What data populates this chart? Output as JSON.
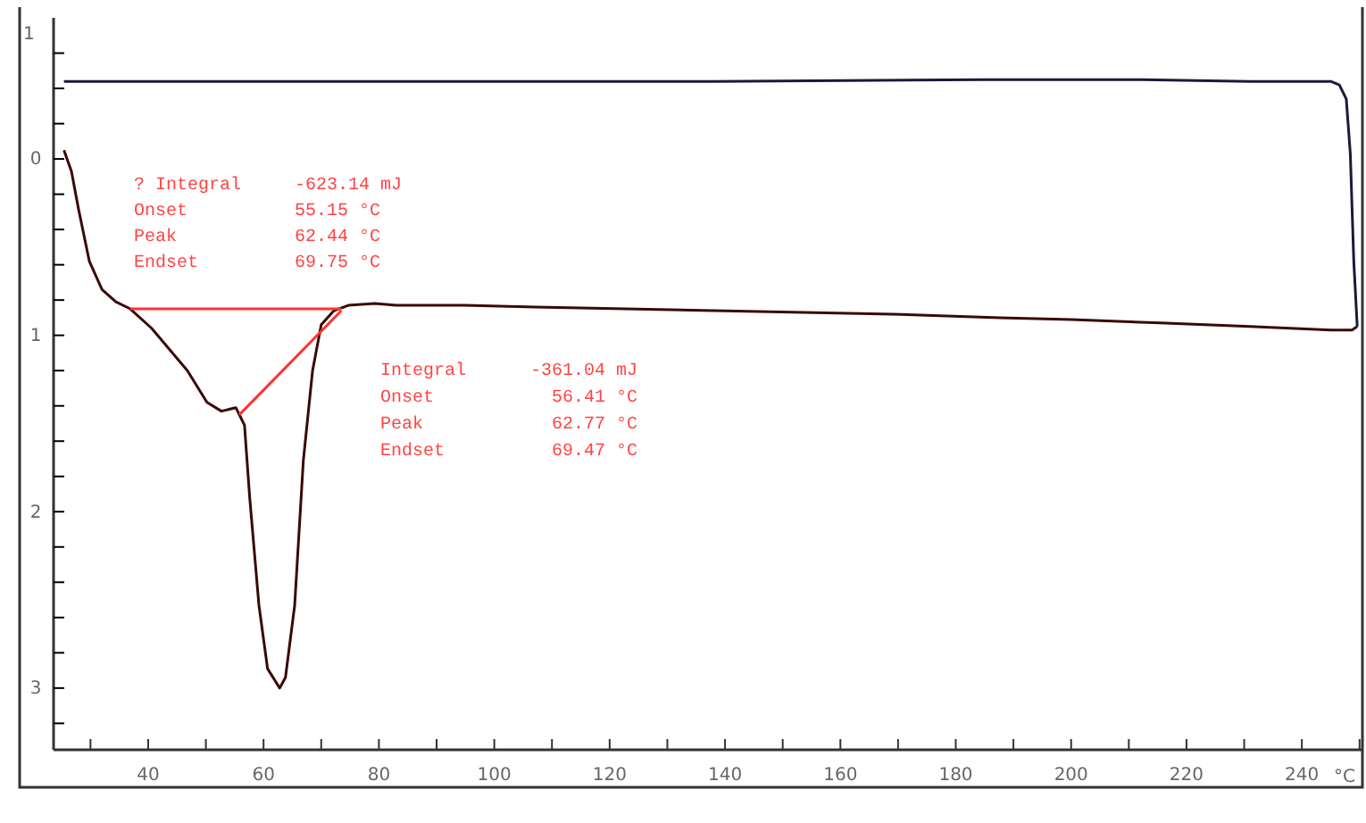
{
  "chart_data": {
    "type": "line",
    "xlabel": "°C",
    "xlim": [
      23.6,
      250.5
    ],
    "xticks": [
      {
        "value": 30,
        "label": null
      },
      40,
      {
        "value": 50,
        "label": null
      },
      60,
      {
        "value": 70,
        "label": null
      },
      80,
      {
        "value": 90,
        "label": null
      },
      100,
      {
        "value": 110,
        "label": null
      },
      120,
      {
        "value": 130,
        "label": null
      },
      140,
      {
        "value": 150,
        "label": null
      },
      160,
      {
        "value": 170,
        "label": null
      },
      180,
      {
        "value": 190,
        "label": null
      },
      200,
      {
        "value": 210,
        "label": null
      },
      220,
      {
        "value": 230,
        "label": null
      },
      240,
      {
        "value": 250,
        "label": null
      }
    ],
    "ylim": [
      -3.35,
      0.8
    ],
    "yticks": [
      {
        "value": 0.6,
        "label": null
      },
      {
        "value": 0.4,
        "label": null
      },
      {
        "value": 0.2,
        "label": null
      },
      0,
      {
        "value": -0.2,
        "label": null
      },
      {
        "value": -0.4,
        "label": null
      },
      {
        "value": -0.6,
        "label": null
      },
      {
        "value": -0.8,
        "label": null
      },
      {
        "value": -1,
        "label": "1"
      },
      {
        "value": -1.2,
        "label": null
      },
      {
        "value": -1.4,
        "label": null
      },
      {
        "value": -1.6,
        "label": null
      },
      {
        "value": -1.8,
        "label": null
      },
      {
        "value": -2,
        "label": "2"
      },
      {
        "value": -2.2,
        "label": null
      },
      {
        "value": -2.4,
        "label": null
      },
      {
        "value": -2.6,
        "label": null
      },
      {
        "value": -2.8,
        "label": null
      },
      {
        "value": -3,
        "label": "3"
      },
      {
        "value": -3.2,
        "label": null
      }
    ],
    "grid": false,
    "marker": "none",
    "line_style": "solid",
    "series": [
      {
        "color": "#3a0808",
        "x": [
          25.4,
          26.7,
          27.9,
          29.8,
          32.0,
          34.4,
          36.9,
          40.6,
          43.7,
          46.8,
          50.2,
          52.7,
          55.2,
          56.7,
          57.6,
          59.2,
          60.7,
          62.8,
          63.8,
          65.4,
          66.9,
          68.5,
          70.0,
          72.2,
          74.7,
          79.3,
          83.0,
          94.8,
          107.2,
          138.1,
          153.6,
          169.1,
          187.7,
          200.1,
          215.5,
          231.0,
          245.0,
          248.7,
          249.6
        ],
        "values": [
          0.05,
          -0.07,
          -0.28,
          -0.58,
          -0.74,
          -0.81,
          -0.85,
          -0.96,
          -1.08,
          -1.2,
          -1.38,
          -1.43,
          -1.41,
          -1.51,
          -1.92,
          -2.53,
          -2.89,
          -3.0,
          -2.94,
          -2.53,
          -1.71,
          -1.2,
          -0.94,
          -0.86,
          -0.83,
          -0.82,
          -0.83,
          -0.83,
          -0.84,
          -0.86,
          -0.87,
          -0.88,
          -0.9,
          -0.91,
          -0.93,
          -0.95,
          -0.97,
          -0.97,
          -0.95
        ]
      },
      {
        "color": "#1a1a3a",
        "x": [
          249.6,
          249.0,
          248.4,
          247.7,
          246.5,
          245.0,
          231.0,
          212.4,
          184.6,
          138.1,
          76.2,
          25.4
        ],
        "values": [
          -0.95,
          -0.58,
          0.03,
          0.34,
          0.42,
          0.44,
          0.44,
          0.45,
          0.45,
          0.44,
          0.44,
          0.44
        ]
      },
      {
        "color": "#ff3333",
        "x": [
          36.9,
          73.5
        ],
        "values": [
          -0.85,
          -0.85
        ]
      },
      {
        "color": "#ff3333",
        "x": [
          55.8,
          73.5
        ],
        "values": [
          -1.45,
          -0.86
        ]
      }
    ],
    "annotations": [
      "1",
      "? Integral     -623.14 mJ",
      "Onset          55.15 °C",
      "Peak           62.44 °C",
      "Endset         69.75 °C",
      "Integral      -361.04 mJ",
      "Onset           56.41 °C",
      "Peak            62.77 °C",
      "Endset          69.47 °C"
    ]
  }
}
